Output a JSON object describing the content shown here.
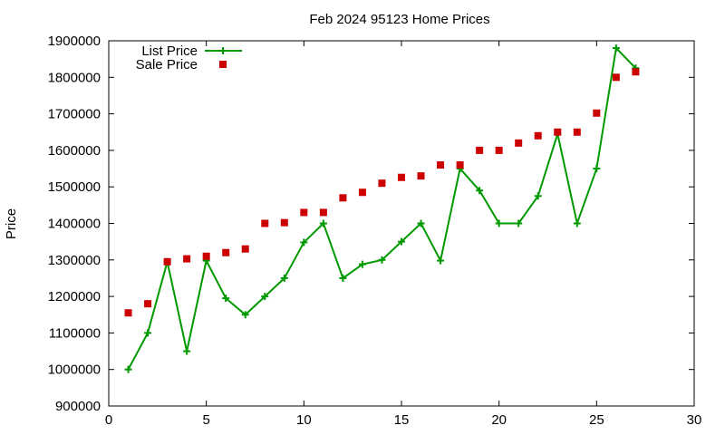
{
  "chart_data": {
    "type": "line",
    "title": "Feb 2024 95123 Home Prices",
    "xlabel": "",
    "ylabel": "Price",
    "xlim": [
      0,
      30
    ],
    "ylim": [
      900000,
      1900000
    ],
    "x_ticks": [
      0,
      5,
      10,
      15,
      20,
      25,
      30
    ],
    "y_ticks": [
      900000,
      1000000,
      1100000,
      1200000,
      1300000,
      1400000,
      1500000,
      1600000,
      1700000,
      1800000,
      1900000
    ],
    "grid": false,
    "legend_position": "top-left",
    "series": [
      {
        "name": "List Price",
        "style": "line-plus",
        "color": "#009900",
        "x": [
          1,
          2,
          3,
          4,
          5,
          6,
          7,
          8,
          9,
          10,
          11,
          12,
          13,
          14,
          15,
          16,
          17,
          18,
          19,
          20,
          21,
          22,
          23,
          24,
          25,
          26,
          27
        ],
        "y": [
          1000000,
          1100000,
          1295000,
          1050000,
          1298000,
          1195000,
          1150000,
          1200000,
          1250000,
          1348000,
          1400000,
          1250000,
          1288000,
          1300000,
          1350000,
          1400000,
          1298000,
          1550000,
          1490000,
          1400000,
          1400000,
          1475000,
          1645000,
          1400000,
          1550000,
          1880000,
          1825000
        ]
      },
      {
        "name": "Sale Price",
        "style": "square",
        "color": "#cc0000",
        "x": [
          1,
          2,
          3,
          4,
          5,
          6,
          7,
          8,
          9,
          10,
          11,
          12,
          13,
          14,
          15,
          16,
          17,
          18,
          19,
          20,
          21,
          22,
          23,
          24,
          25,
          26,
          27
        ],
        "y": [
          1155000,
          1180000,
          1295000,
          1303000,
          1310000,
          1320000,
          1330000,
          1400000,
          1402000,
          1430000,
          1430000,
          1470000,
          1485000,
          1510000,
          1526000,
          1530000,
          1560000,
          1560000,
          1600000,
          1600000,
          1620000,
          1640000,
          1650000,
          1650000,
          1702000,
          1800000,
          1815000
        ]
      }
    ]
  }
}
